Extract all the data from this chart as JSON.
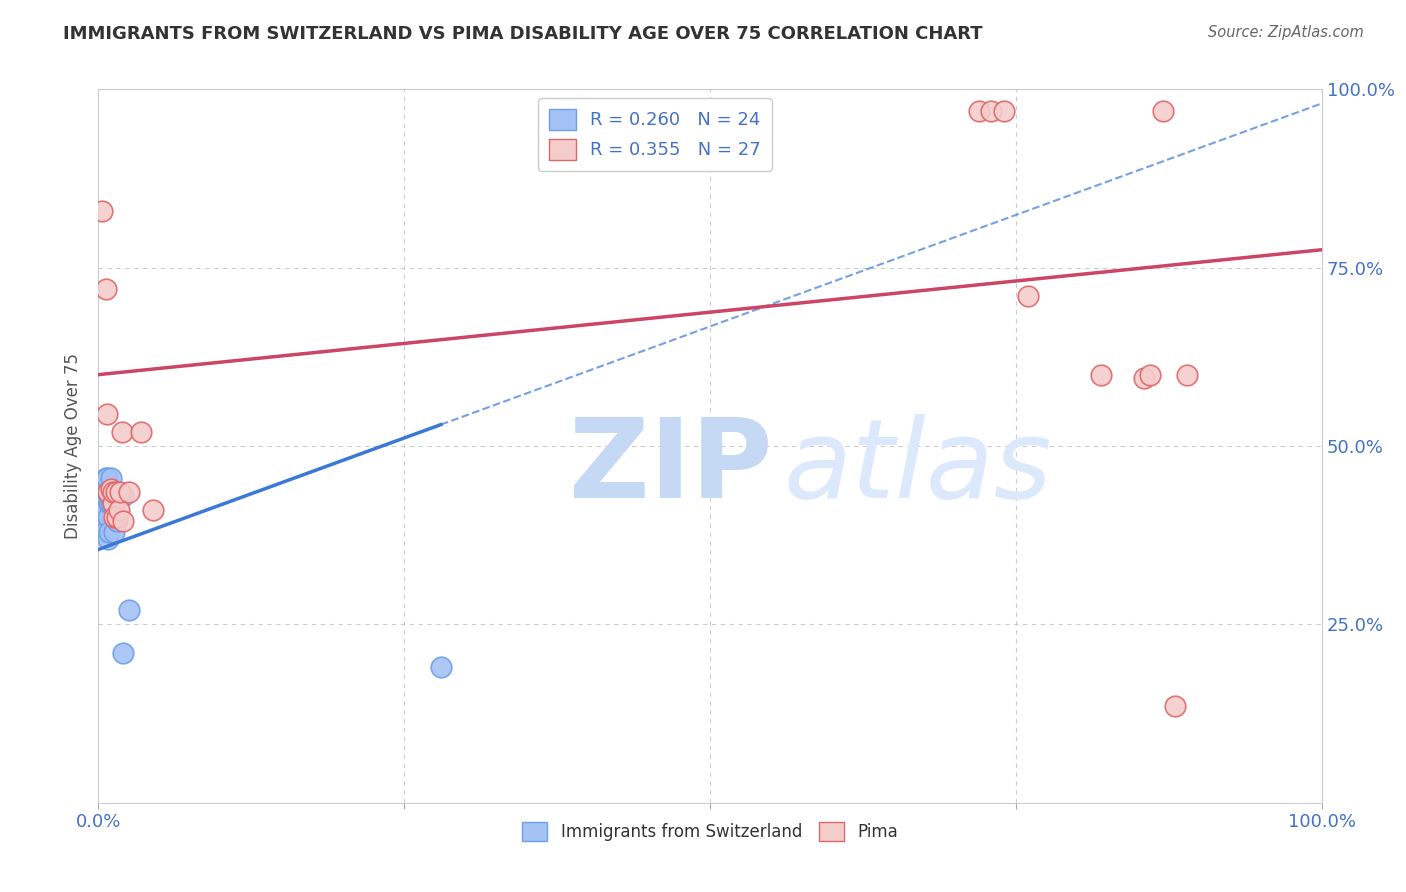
{
  "title": "IMMIGRANTS FROM SWITZERLAND VS PIMA DISABILITY AGE OVER 75 CORRELATION CHART",
  "source": "Source: ZipAtlas.com",
  "ylabel": "Disability Age Over 75",
  "xlabel": "",
  "xlim": [
    0,
    1.0
  ],
  "ylim": [
    0,
    1.0
  ],
  "xtick_labels": [
    "0.0%",
    "",
    "",
    "",
    "100.0%"
  ],
  "ytick_labels_right": [
    "25.0%",
    "50.0%",
    "75.0%",
    "100.0%"
  ],
  "yticks_right": [
    0.25,
    0.5,
    0.75,
    1.0
  ],
  "legend_blue_r": "R = 0.260",
  "legend_blue_n": "N = 24",
  "legend_pink_r": "R = 0.355",
  "legend_pink_n": "N = 27",
  "blue_color": "#a4c2f4",
  "pink_color": "#f4cccc",
  "blue_edge_color": "#6d9eeb",
  "pink_edge_color": "#e06666",
  "blue_line_color": "#3c78d8",
  "pink_line_color": "#cc4466",
  "legend_r_color": "#4472c4",
  "watermark_zip": "ZIP",
  "watermark_atlas": "atlas",
  "blue_x": [
    0.002,
    0.003,
    0.004,
    0.004,
    0.005,
    0.005,
    0.006,
    0.006,
    0.007,
    0.007,
    0.008,
    0.008,
    0.009,
    0.009,
    0.01,
    0.01,
    0.01,
    0.012,
    0.013,
    0.015,
    0.02,
    0.025,
    0.02,
    0.28
  ],
  "blue_y": [
    0.385,
    0.395,
    0.4,
    0.42,
    0.38,
    0.41,
    0.43,
    0.455,
    0.435,
    0.455,
    0.37,
    0.4,
    0.38,
    0.42,
    0.435,
    0.455,
    0.42,
    0.42,
    0.38,
    0.395,
    0.43,
    0.27,
    0.21,
    0.19
  ],
  "pink_x": [
    0.003,
    0.006,
    0.007,
    0.008,
    0.01,
    0.012,
    0.012,
    0.013,
    0.014,
    0.015,
    0.017,
    0.018,
    0.019,
    0.02,
    0.025,
    0.035,
    0.045,
    0.72,
    0.73,
    0.74,
    0.76,
    0.82,
    0.855,
    0.86,
    0.87,
    0.88,
    0.89
  ],
  "pink_y": [
    0.83,
    0.72,
    0.545,
    0.435,
    0.44,
    0.42,
    0.435,
    0.4,
    0.435,
    0.4,
    0.41,
    0.435,
    0.52,
    0.395,
    0.435,
    0.52,
    0.41,
    0.97,
    0.97,
    0.97,
    0.71,
    0.6,
    0.595,
    0.6,
    0.97,
    0.135,
    0.6
  ],
  "blue_trend_x0": 0.0,
  "blue_trend_y0": 0.355,
  "blue_trend_x1": 1.0,
  "blue_trend_y1": 0.98,
  "pink_trend_x0": 0.0,
  "pink_trend_y0": 0.6,
  "pink_trend_x1": 1.0,
  "pink_trend_y1": 0.775
}
